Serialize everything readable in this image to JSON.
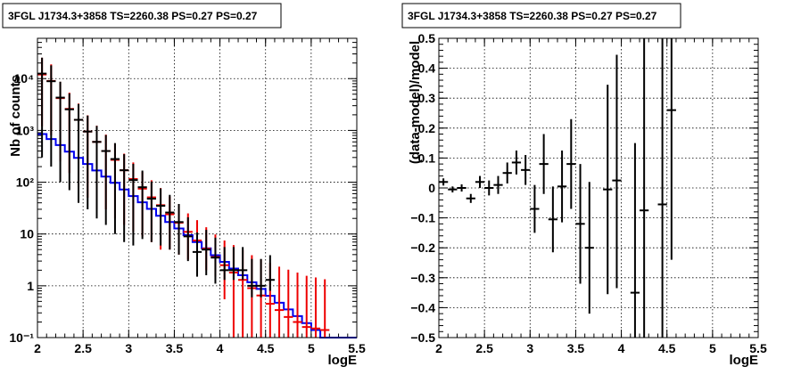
{
  "chart_data": [
    {
      "type": "line",
      "title": "3FGL J1734.3+3858 TS=2260.38 PS=0.27 PS=0.27",
      "xlabel": "logE",
      "ylabel": "Nb of counts",
      "xlim": [
        2,
        5.5
      ],
      "ylim": [
        0.1,
        60000
      ],
      "yscale": "log",
      "grid": true,
      "x_ticks": [
        "2",
        "2.5",
        "3",
        "3.5",
        "4",
        "4.5",
        "5",
        "5.5"
      ],
      "y_ticks": [
        "10⁻¹",
        "1",
        "10",
        "10²",
        "10³",
        "10⁴"
      ],
      "bin_edges": [
        2.0,
        2.1,
        2.2,
        2.3,
        2.4,
        2.5,
        2.6,
        2.7,
        2.8,
        2.9,
        3.0,
        3.1,
        3.2,
        3.3,
        3.4,
        3.5,
        3.6,
        3.7,
        3.8,
        3.9,
        4.0,
        4.1,
        4.2,
        4.3,
        4.4,
        4.5,
        4.6,
        4.7,
        4.8,
        4.9,
        5.0,
        5.1,
        5.2,
        5.3,
        5.4,
        5.5
      ],
      "series": [
        {
          "name": "model_blue",
          "color": "#0000ee",
          "style": "step",
          "values": [
            850,
            680,
            520,
            390,
            295,
            225,
            168,
            128,
            97,
            72,
            54,
            41,
            30.5,
            22.5,
            17,
            12.8,
            9.5,
            7.0,
            5.3,
            3.9,
            2.9,
            2.15,
            1.6,
            1.17,
            0.87,
            0.64,
            0.47,
            0.35,
            0.26,
            0.19,
            0.14,
            0.1,
            0.1,
            0.1,
            0.1
          ]
        },
        {
          "name": "model_red",
          "color": "#ee0000",
          "style": "errorbar",
          "x": [
            2.05,
            2.15,
            2.25,
            2.35,
            2.45,
            2.55,
            2.65,
            2.75,
            2.85,
            2.95,
            3.05,
            3.15,
            3.25,
            3.35,
            3.45,
            3.55,
            3.65,
            3.75,
            3.85,
            3.95,
            4.05,
            4.15,
            4.25,
            4.35,
            4.45,
            4.55,
            4.65,
            4.75,
            4.85,
            4.95,
            5.05,
            5.15
          ],
          "y": [
            12000,
            9000,
            4200,
            2600,
            1600,
            950,
            600,
            400,
            270,
            170,
            115,
            75,
            51,
            36,
            24,
            16.5,
            11,
            7.5,
            5.2,
            3.6,
            2.5,
            1.8,
            1.3,
            0.9,
            0.65,
            0.45,
            0.34,
            0.25,
            0.2,
            0.16,
            0.15,
            0.14
          ],
          "yerr_low": [
            10800,
            8200,
            3950,
            2450,
            1520,
            900,
            570,
            370,
            250,
            155,
            104,
            66,
            44,
            31,
            19,
            12.5,
            7.8,
            5.3,
            3.2,
            2.1,
            1.95,
            1.7,
            1.22,
            0.85,
            0.62,
            0.43,
            0.33,
            0.24,
            0.19,
            0.155,
            0.145,
            0.135
          ],
          "yerr_high": [
            13200,
            9800,
            4450,
            2750,
            1700,
            1000,
            630,
            430,
            290,
            185,
            126,
            84,
            58,
            41,
            29,
            20.5,
            14,
            11,
            8.3,
            6.2,
            5,
            4.3,
            3.6,
            3,
            2.6,
            2.3,
            2,
            1.8,
            1.6,
            1.4,
            1.3,
            1.2
          ]
        },
        {
          "name": "data_black",
          "color": "#000000",
          "style": "errorbar",
          "x": [
            2.05,
            2.15,
            2.25,
            2.35,
            2.45,
            2.55,
            2.65,
            2.75,
            2.85,
            2.95,
            3.05,
            3.15,
            3.25,
            3.35,
            3.45,
            3.55,
            3.65,
            3.75,
            3.85,
            3.95,
            4.05,
            4.15,
            4.25,
            4.35,
            4.45,
            4.55
          ],
          "y": [
            12500,
            8900,
            4300,
            2550,
            1600,
            950,
            600,
            400,
            280,
            170,
            110,
            80,
            48,
            35,
            26,
            17,
            9,
            4.5,
            5,
            3.5,
            2,
            2,
            2,
            1,
            1,
            1.3
          ],
          "yerr_low": [
            12200,
            8700,
            4200,
            2480,
            1560,
            920,
            580,
            385,
            270,
            163,
            104,
            72,
            41,
            29,
            21,
            13,
            6,
            3,
            3.4,
            2.4,
            0.7,
            0.7,
            0.7,
            0.4,
            0.4,
            0.5
          ],
          "yerr_high": [
            12800,
            9100,
            4400,
            2620,
            1640,
            980,
            620,
            415,
            290,
            177,
            116,
            88,
            55,
            41,
            31,
            21,
            12,
            6.2,
            7,
            5,
            3.6,
            3.6,
            3.6,
            2.3,
            2.3,
            2.6
          ]
        }
      ]
    },
    {
      "type": "scatter",
      "title": "3FGL J1734.3+3858 TS=2260.38 PS=0.27 PS=0.27",
      "xlabel": "logE",
      "ylabel": "(data-model)/model",
      "xlim": [
        2,
        5.5
      ],
      "ylim": [
        -0.5,
        0.5
      ],
      "grid": true,
      "x_ticks": [
        "2",
        "2.5",
        "3",
        "3.5",
        "4",
        "4.5",
        "5",
        "5.5"
      ],
      "y_ticks": [
        "−0.5",
        "−0.4",
        "−0.3",
        "−0.2",
        "−0.1",
        "0",
        "0.1",
        "0.2",
        "0.3",
        "0.4",
        "0.5"
      ],
      "series": [
        {
          "name": "residuals",
          "color": "#000000",
          "x": [
            2.05,
            2.15,
            2.25,
            2.35,
            2.45,
            2.55,
            2.65,
            2.75,
            2.85,
            2.95,
            3.05,
            3.15,
            3.25,
            3.35,
            3.45,
            3.55,
            3.65,
            3.85,
            3.95,
            4.15,
            4.25,
            4.45,
            4.55
          ],
          "y": [
            0.02,
            -0.005,
            0.0,
            -0.035,
            0.02,
            0.0,
            0.01,
            0.05,
            0.085,
            0.06,
            -0.07,
            0.08,
            -0.105,
            0.005,
            0.08,
            -0.12,
            -0.2,
            -0.005,
            0.025,
            -0.35,
            -0.075,
            -0.055,
            0.26
          ],
          "yerr_low": [
            0.012,
            0.01,
            0.012,
            0.015,
            0.02,
            0.025,
            0.03,
            0.035,
            0.04,
            0.05,
            0.08,
            0.1,
            0.11,
            0.12,
            0.15,
            0.2,
            0.22,
            0.35,
            0.36,
            0.5,
            0.5,
            0.5,
            0.5
          ],
          "yerr_high": [
            0.012,
            0.01,
            0.012,
            0.015,
            0.02,
            0.025,
            0.03,
            0.035,
            0.04,
            0.05,
            0.08,
            0.1,
            0.11,
            0.12,
            0.15,
            0.2,
            0.22,
            0.35,
            0.42,
            0.5,
            0.6,
            0.6,
            0.6
          ]
        }
      ]
    }
  ]
}
